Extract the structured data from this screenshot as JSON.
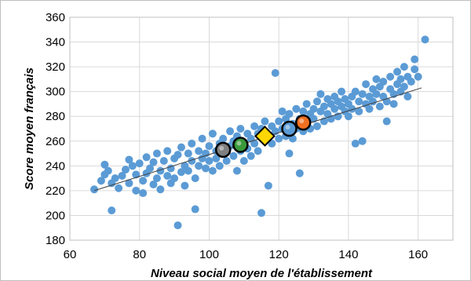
{
  "chart_data": {
    "type": "scatter",
    "title": "",
    "xlabel": "Niveau social moyen de l'établissement",
    "ylabel": "Score moyen français",
    "xlim": [
      60,
      170
    ],
    "ylim": [
      180,
      360
    ],
    "xticks": [
      60,
      80,
      100,
      120,
      140,
      160
    ],
    "yticks": [
      180,
      200,
      220,
      240,
      260,
      280,
      300,
      320,
      340,
      360
    ],
    "grid": true,
    "legend": "none",
    "colors": {
      "points": "#5b9bd5",
      "trend": "#404040",
      "grid": "#d9d9d9",
      "marker_gray": "#808080",
      "marker_green": "#3a9a3a",
      "marker_yellow": "#ffd700",
      "marker_blue": "#5b9bd5",
      "marker_orange": "#f07020"
    },
    "series": [
      {
        "points": [
          [
            67,
            221
          ],
          [
            69,
            228
          ],
          [
            70,
            233
          ],
          [
            70,
            241
          ],
          [
            71,
            236
          ],
          [
            72,
            226
          ],
          [
            72,
            204
          ],
          [
            73,
            230
          ],
          [
            74,
            222
          ],
          [
            75,
            232
          ],
          [
            76,
            237
          ],
          [
            77,
            245
          ],
          [
            77,
            226
          ],
          [
            78,
            240
          ],
          [
            79,
            233
          ],
          [
            79,
            220
          ],
          [
            80,
            242
          ],
          [
            81,
            228
          ],
          [
            81,
            218
          ],
          [
            82,
            247
          ],
          [
            82,
            234
          ],
          [
            83,
            238
          ],
          [
            84,
            225
          ],
          [
            84,
            243
          ],
          [
            85,
            230
          ],
          [
            85,
            250
          ],
          [
            86,
            236
          ],
          [
            86,
            221
          ],
          [
            87,
            244
          ],
          [
            88,
            232
          ],
          [
            88,
            252
          ],
          [
            89,
            238
          ],
          [
            89,
            226
          ],
          [
            90,
            246
          ],
          [
            90,
            230
          ],
          [
            91,
            192
          ],
          [
            91,
            249
          ],
          [
            92,
            235
          ],
          [
            92,
            255
          ],
          [
            93,
            240
          ],
          [
            93,
            224
          ],
          [
            94,
            250
          ],
          [
            94,
            236
          ],
          [
            95,
            244
          ],
          [
            95,
            258
          ],
          [
            96,
            230
          ],
          [
            96,
            205
          ],
          [
            97,
            252
          ],
          [
            97,
            240
          ],
          [
            98,
            246
          ],
          [
            98,
            262
          ],
          [
            99,
            238
          ],
          [
            99,
            250
          ],
          [
            100,
            244
          ],
          [
            100,
            256
          ],
          [
            101,
            236
          ],
          [
            101,
            266
          ],
          [
            102,
            252
          ],
          [
            102,
            246
          ],
          [
            103,
            258
          ],
          [
            103,
            240
          ],
          [
            104,
            262
          ],
          [
            104,
            250
          ],
          [
            105,
            254
          ],
          [
            105,
            244
          ],
          [
            106,
            268
          ],
          [
            106,
            256
          ],
          [
            107,
            260
          ],
          [
            107,
            248
          ],
          [
            108,
            236
          ],
          [
            108,
            264
          ],
          [
            109,
            252
          ],
          [
            109,
            270
          ],
          [
            110,
            258
          ],
          [
            110,
            244
          ],
          [
            111,
            266
          ],
          [
            111,
            254
          ],
          [
            112,
            262
          ],
          [
            112,
            248
          ],
          [
            113,
            272
          ],
          [
            113,
            258
          ],
          [
            114,
            266
          ],
          [
            114,
            252
          ],
          [
            115,
            202
          ],
          [
            115,
            270
          ],
          [
            116,
            260
          ],
          [
            116,
            276
          ],
          [
            117,
            224
          ],
          [
            117,
            264
          ],
          [
            118,
            272
          ],
          [
            118,
            258
          ],
          [
            119,
            315
          ],
          [
            119,
            268
          ],
          [
            120,
            276
          ],
          [
            120,
            262
          ],
          [
            121,
            284
          ],
          [
            121,
            270
          ],
          [
            122,
            264
          ],
          [
            122,
            278
          ],
          [
            123,
            250
          ],
          [
            123,
            282
          ],
          [
            124,
            274
          ],
          [
            124,
            262
          ],
          [
            125,
            286
          ],
          [
            125,
            270
          ],
          [
            126,
            234
          ],
          [
            126,
            278
          ],
          [
            127,
            284
          ],
          [
            127,
            268
          ],
          [
            128,
            290
          ],
          [
            128,
            276
          ],
          [
            129,
            282
          ],
          [
            129,
            270
          ],
          [
            130,
            286
          ],
          [
            130,
            278
          ],
          [
            131,
            292
          ],
          [
            131,
            272
          ],
          [
            132,
            284
          ],
          [
            132,
            298
          ],
          [
            133,
            276
          ],
          [
            133,
            288
          ],
          [
            134,
            282
          ],
          [
            134,
            294
          ],
          [
            135,
            278
          ],
          [
            135,
            290
          ],
          [
            136,
            286
          ],
          [
            136,
            296
          ],
          [
            137,
            280
          ],
          [
            137,
            292
          ],
          [
            138,
            288
          ],
          [
            138,
            300
          ],
          [
            139,
            284
          ],
          [
            139,
            294
          ],
          [
            140,
            290
          ],
          [
            140,
            280
          ],
          [
            141,
            296
          ],
          [
            141,
            286
          ],
          [
            142,
            300
          ],
          [
            142,
            258
          ],
          [
            143,
            292
          ],
          [
            143,
            284
          ],
          [
            144,
            298
          ],
          [
            144,
            260
          ],
          [
            145,
            306
          ],
          [
            145,
            290
          ],
          [
            146,
            296
          ],
          [
            146,
            286
          ],
          [
            147,
            302
          ],
          [
            147,
            292
          ],
          [
            148,
            298
          ],
          [
            148,
            310
          ],
          [
            149,
            288
          ],
          [
            149,
            304
          ],
          [
            150,
            296
          ],
          [
            150,
            308
          ],
          [
            151,
            292
          ],
          [
            151,
            276
          ],
          [
            152,
            302
          ],
          [
            152,
            312
          ],
          [
            153,
            298
          ],
          [
            153,
            290
          ],
          [
            154,
            306
          ],
          [
            154,
            316
          ],
          [
            155,
            300
          ],
          [
            155,
            310
          ],
          [
            156,
            304
          ],
          [
            156,
            320
          ],
          [
            157,
            296
          ],
          [
            157,
            312
          ],
          [
            158,
            308
          ],
          [
            159,
            318
          ],
          [
            159,
            326
          ],
          [
            160,
            312
          ],
          [
            162,
            342
          ]
        ]
      }
    ],
    "trendline": {
      "x": [
        67,
        161
      ],
      "y": [
        220,
        303
      ]
    },
    "highlighted_markers": [
      {
        "shape": "circle",
        "color": "gray",
        "x": 104,
        "y": 253
      },
      {
        "shape": "circle",
        "color": "green",
        "x": 109,
        "y": 257
      },
      {
        "shape": "diamond",
        "color": "yellow",
        "x": 116,
        "y": 264
      },
      {
        "shape": "circle",
        "color": "blue",
        "x": 123,
        "y": 270
      },
      {
        "shape": "circle",
        "color": "orange",
        "x": 127,
        "y": 275
      }
    ]
  }
}
